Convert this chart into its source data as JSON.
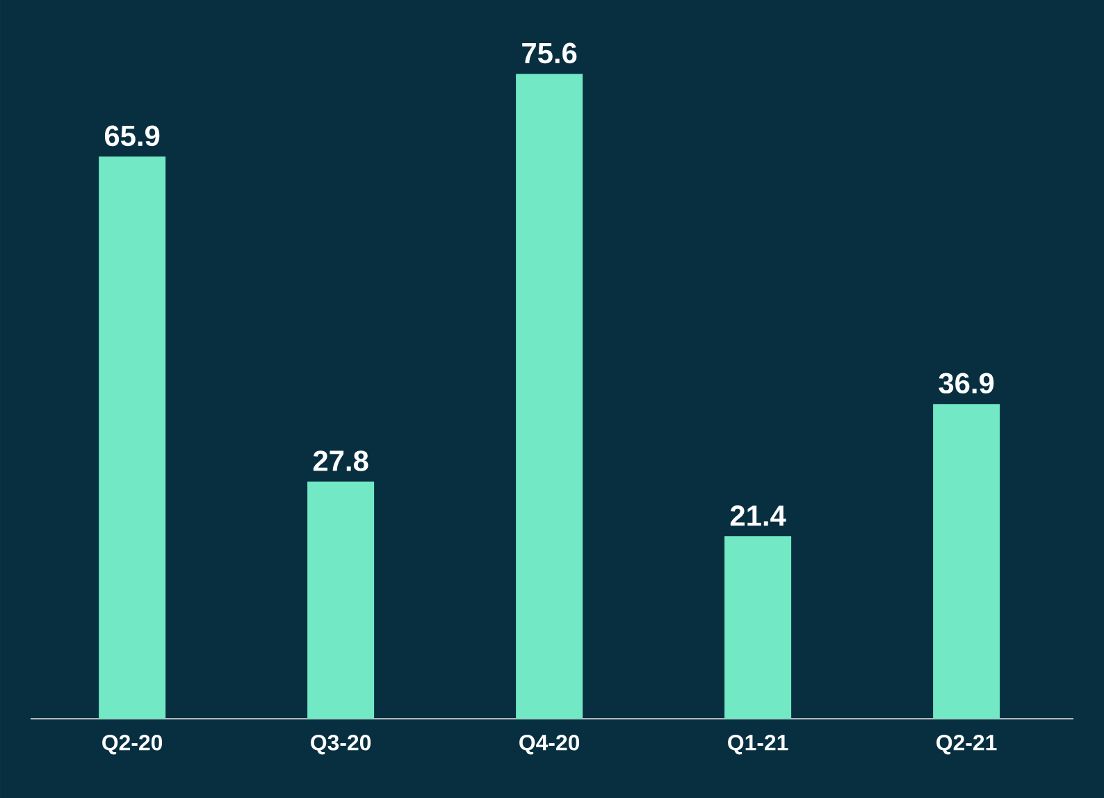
{
  "chart_data": {
    "type": "bar",
    "categories": [
      "Q2-20",
      "Q3-20",
      "Q4-20",
      "Q1-21",
      "Q2-21"
    ],
    "values": [
      65.9,
      27.8,
      75.6,
      21.4,
      36.9
    ],
    "color": "#72e8c4",
    "data_labels": true
  }
}
